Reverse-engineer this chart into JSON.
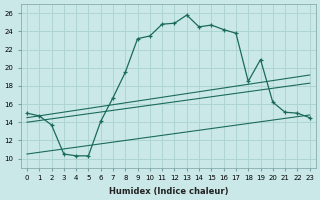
{
  "xlabel": "Humidex (Indice chaleur)",
  "background_color": "#cbe8e8",
  "grid_color": "#aed4d4",
  "line_color": "#1a6b5a",
  "xlim": [
    -0.5,
    23.5
  ],
  "ylim": [
    9,
    27
  ],
  "xticks": [
    0,
    1,
    2,
    3,
    4,
    5,
    6,
    7,
    8,
    9,
    10,
    11,
    12,
    13,
    14,
    15,
    16,
    17,
    18,
    19,
    20,
    21,
    22,
    23
  ],
  "yticks": [
    10,
    12,
    14,
    16,
    18,
    20,
    22,
    24,
    26
  ],
  "curve_x": [
    0,
    1,
    2,
    3,
    4,
    5,
    6,
    7,
    8,
    9,
    10,
    11,
    12,
    13,
    14,
    15,
    16,
    17,
    18,
    19,
    20,
    21,
    22,
    23
  ],
  "curve_y": [
    15.0,
    14.7,
    13.7,
    10.5,
    10.3,
    10.3,
    14.1,
    16.7,
    19.5,
    23.2,
    23.5,
    24.8,
    24.9,
    25.8,
    24.5,
    24.7,
    24.2,
    23.8,
    18.5,
    20.9,
    16.2,
    15.1,
    15.0,
    14.5
  ],
  "line1_x": [
    0,
    23
  ],
  "line1_y": [
    14.5,
    19.2
  ],
  "line2_x": [
    0,
    23
  ],
  "line2_y": [
    14.0,
    18.3
  ],
  "line3_x": [
    0,
    23
  ],
  "line3_y": [
    10.5,
    14.8
  ]
}
